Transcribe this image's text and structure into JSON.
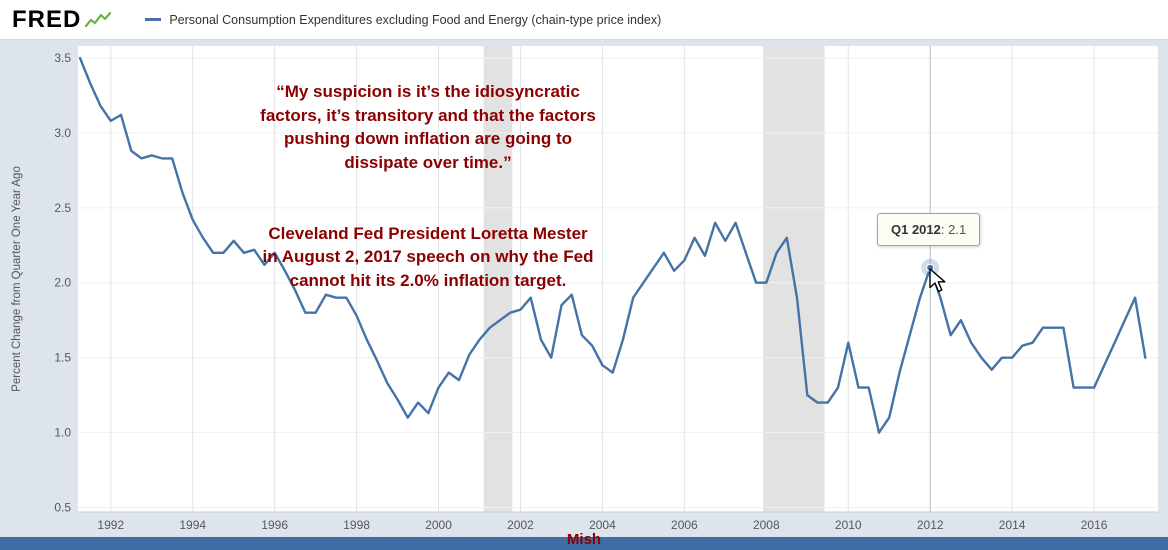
{
  "header": {
    "logo": "FRED",
    "series_label": "Personal Consumption Expenditures excluding Food and Energy (chain-type price index)"
  },
  "annotation": {
    "quote": "“My suspicion is it’s the idiosyncratic\nfactors, it’s transitory and that the factors\npushing down inflation are going to\ndissipate over time.”",
    "attribution": "Cleveland Fed President Loretta Mester\nin August 2, 2017 speech on why the Fed\ncannot hit its 2.0% inflation target."
  },
  "tooltip": {
    "date": "Q1 2012",
    "separator": ": ",
    "value": "2.1"
  },
  "watermark": "Mish",
  "colors": {
    "line": "#4572a7",
    "annotation_text": "#8b0000",
    "recession_band": "#e2e2e2",
    "footer_bar": "#3e6ea5",
    "background": "#dde4eb",
    "logo_icon_green": "#69b345",
    "tick_label": "#585858",
    "crosshair": "#b9c2cb"
  },
  "chart_data": {
    "type": "line",
    "title": "Personal Consumption Expenditures excluding Food and Energy (chain-type price index)",
    "ylabel": "Percent Change from Quarter One Year Ago",
    "xlabel": "",
    "ylim": [
      0.5,
      3.5
    ],
    "xlim": [
      1991.2,
      2017.56
    ],
    "x_ticks": [
      1992,
      1994,
      1996,
      1998,
      2000,
      2002,
      2004,
      2006,
      2008,
      2010,
      2012,
      2014,
      2016
    ],
    "y_ticks": [
      0.5,
      1.0,
      1.5,
      2.0,
      2.5,
      3.0,
      3.5
    ],
    "grid": "vertical",
    "legend_position": "top",
    "recession_bands": [
      [
        2001.1,
        2001.8
      ],
      [
        2007.92,
        2009.42
      ]
    ],
    "highlight": {
      "x": 2012.0,
      "y": 2.1,
      "label": "Q1 2012",
      "value": "2.1"
    },
    "x_start": 1991.25,
    "x_step": 0.25,
    "values": [
      3.5,
      3.33,
      3.18,
      3.08,
      3.12,
      2.88,
      2.83,
      2.85,
      2.83,
      2.83,
      2.6,
      2.42,
      2.3,
      2.2,
      2.2,
      2.28,
      2.2,
      2.22,
      2.12,
      2.2,
      2.08,
      1.95,
      1.8,
      1.8,
      1.92,
      1.9,
      1.9,
      1.78,
      1.62,
      1.48,
      1.33,
      1.22,
      1.1,
      1.2,
      1.13,
      1.3,
      1.4,
      1.35,
      1.52,
      1.62,
      1.7,
      1.75,
      1.8,
      1.82,
      1.9,
      1.62,
      1.5,
      1.85,
      1.92,
      1.65,
      1.58,
      1.45,
      1.4,
      1.62,
      1.9,
      2.0,
      2.1,
      2.2,
      2.08,
      2.15,
      2.3,
      2.18,
      2.4,
      2.28,
      2.4,
      2.2,
      2.0,
      2.0,
      2.2,
      2.3,
      1.9,
      1.25,
      1.2,
      1.2,
      1.3,
      1.6,
      1.3,
      1.3,
      1.0,
      1.1,
      1.4,
      1.65,
      1.9,
      2.1,
      1.9,
      1.65,
      1.75,
      1.6,
      1.5,
      1.42,
      1.5,
      1.5,
      1.58,
      1.6,
      1.7,
      1.7,
      1.7,
      1.3,
      1.3,
      1.3,
      1.45,
      1.6,
      1.75,
      1.9,
      1.5
    ]
  }
}
